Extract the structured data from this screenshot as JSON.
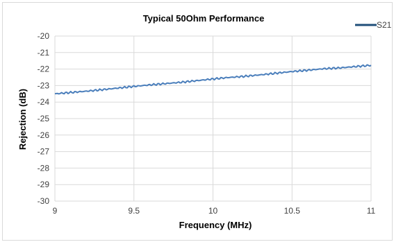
{
  "chart_data": {
    "type": "line",
    "title": "Typical 50Ohm Performance",
    "xlabel": "Frequency (MHz)",
    "ylabel": "Rejection (dB)",
    "xlim": [
      9,
      11
    ],
    "ylim": [
      -30,
      -20
    ],
    "x_ticks": [
      "9",
      "9.5",
      "10",
      "10.5",
      "11"
    ],
    "y_ticks": [
      "-20",
      "-21",
      "-22",
      "-23",
      "-24",
      "-25",
      "-26",
      "-27",
      "-28",
      "-29",
      "-30"
    ],
    "grid": true,
    "legend_position": "top-right",
    "series": [
      {
        "name": "S21",
        "color": "#4a7ebb",
        "legend_color": "#1f4e79",
        "x": [
          9.0,
          9.1,
          9.2,
          9.3,
          9.4,
          9.5,
          9.6,
          9.7,
          9.8,
          9.9,
          10.0,
          10.1,
          10.2,
          10.3,
          10.4,
          10.5,
          10.6,
          10.7,
          10.8,
          10.9,
          11.0
        ],
        "y": [
          -23.5,
          -23.42,
          -23.34,
          -23.25,
          -23.15,
          -23.05,
          -22.96,
          -22.88,
          -22.8,
          -22.7,
          -22.6,
          -22.51,
          -22.44,
          -22.35,
          -22.25,
          -22.15,
          -22.07,
          -21.98,
          -21.93,
          -21.85,
          -21.77
        ]
      }
    ]
  }
}
